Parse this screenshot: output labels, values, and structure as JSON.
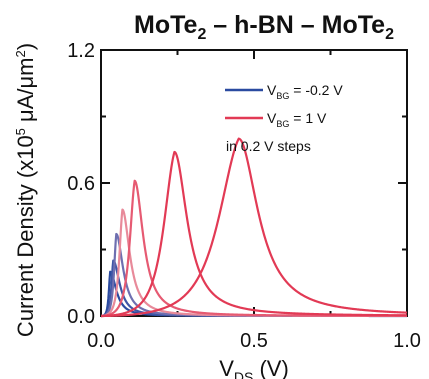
{
  "chart_data": {
    "type": "line",
    "title": {
      "base1": "MoTe",
      "sub1": "2",
      "mid": " – h-BN – ",
      "base2": "MoTe",
      "sub2": "2"
    },
    "xlabel": {
      "base": "V",
      "sub": "DS",
      "unit": " (V)"
    },
    "ylabel": {
      "base": "Current Density (x10",
      "sup1": "5",
      "mid": " μA/μm",
      "sup2": "2",
      "end": ")"
    },
    "xlim": [
      0.0,
      1.0
    ],
    "ylim": [
      0.0,
      1.2
    ],
    "x_ticks": [
      "0.0",
      "0.5",
      "1.0"
    ],
    "y_ticks": [
      "0.0",
      "0.6",
      "1.2"
    ],
    "legend": [
      {
        "v": "V",
        "sub": "BG",
        "value": " = -0.2 V",
        "color": "#2a4aa0"
      },
      {
        "v": "V",
        "sub": "BG",
        "value": " = 1 V",
        "color": "#e23a55"
      }
    ],
    "annotation": "in 0.2 V steps",
    "series": [
      {
        "vbg": -0.2,
        "peak_x": 0.03,
        "peak_y": 0.2,
        "color": "#2a4aa0"
      },
      {
        "vbg": 0.0,
        "peak_x": 0.04,
        "peak_y": 0.25,
        "color": "#3f56a6"
      },
      {
        "vbg": 0.2,
        "peak_x": 0.05,
        "peak_y": 0.37,
        "color": "#6e6fb0"
      },
      {
        "vbg": 0.4,
        "peak_x": 0.07,
        "peak_y": 0.48,
        "color": "#e88a9a"
      },
      {
        "vbg": 0.6,
        "peak_x": 0.11,
        "peak_y": 0.61,
        "color": "#e65a72"
      },
      {
        "vbg": 0.8,
        "peak_x": 0.24,
        "peak_y": 0.74,
        "color": "#e23a55"
      },
      {
        "vbg": 1.0,
        "peak_x": 0.45,
        "peak_y": 0.8,
        "color": "#e23a55"
      }
    ],
    "grid": false
  }
}
